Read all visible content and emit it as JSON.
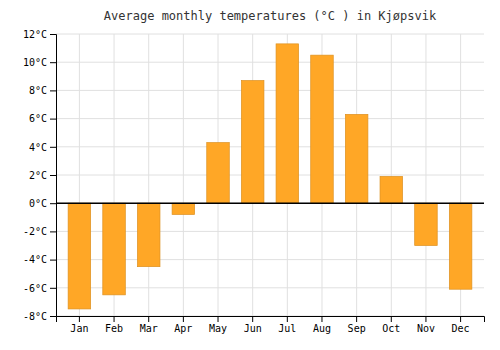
{
  "chart_data": {
    "type": "bar",
    "title": "Average monthly temperatures (°C ) in Kjøpsvik",
    "categories": [
      "Jan",
      "Feb",
      "Mar",
      "Apr",
      "May",
      "Jun",
      "Jul",
      "Aug",
      "Sep",
      "Oct",
      "Nov",
      "Dec"
    ],
    "values": [
      -7.5,
      -6.5,
      -4.5,
      -0.8,
      4.3,
      8.7,
      11.3,
      10.5,
      6.3,
      1.9,
      -3.0,
      -6.1
    ],
    "color": "#FFA726",
    "ylim": [
      -8,
      12
    ],
    "yticks": [
      {
        "value": -8,
        "label": "-8°C"
      },
      {
        "value": -6,
        "label": "-6°C"
      },
      {
        "value": -4,
        "label": "-4°C"
      },
      {
        "value": -2,
        "label": "-2°C"
      },
      {
        "value": 0,
        "label": "0°C"
      },
      {
        "value": 2,
        "label": "2°C"
      },
      {
        "value": 4,
        "label": "4°C"
      },
      {
        "value": 6,
        "label": "6°C"
      },
      {
        "value": 8,
        "label": "8°C"
      },
      {
        "value": 10,
        "label": "10°C"
      },
      {
        "value": 12,
        "label": "12°C"
      }
    ],
    "grid": true
  }
}
